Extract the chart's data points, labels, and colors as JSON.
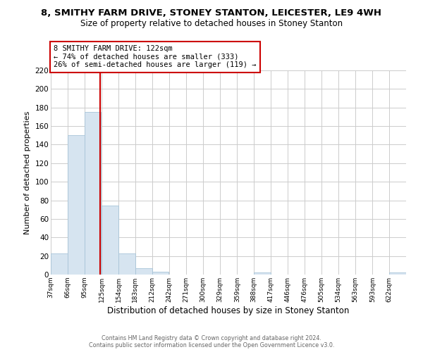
{
  "title": "8, SMITHY FARM DRIVE, STONEY STANTON, LEICESTER, LE9 4WH",
  "subtitle": "Size of property relative to detached houses in Stoney Stanton",
  "xlabel": "Distribution of detached houses by size in Stoney Stanton",
  "ylabel": "Number of detached properties",
  "bar_color": "#d6e4f0",
  "bar_edge_color": "#a8c4d8",
  "vline_x": 122,
  "vline_color": "#cc0000",
  "annotation_title": "8 SMITHY FARM DRIVE: 122sqm",
  "annotation_line1": "← 74% of detached houses are smaller (333)",
  "annotation_line2": "26% of semi-detached houses are larger (119) →",
  "annotation_box_color": "white",
  "annotation_box_edge": "#cc0000",
  "bins_left_edges": [
    37,
    66,
    95,
    125,
    154,
    183,
    212,
    242,
    271,
    300,
    329,
    359,
    388,
    417,
    446,
    476,
    505,
    534,
    563,
    593,
    622
  ],
  "bin_counts": [
    23,
    150,
    175,
    74,
    23,
    7,
    3,
    0,
    0,
    0,
    0,
    0,
    2,
    0,
    0,
    0,
    0,
    0,
    0,
    0,
    2
  ],
  "bin_width": 29,
  "xlim_left": 37,
  "xlim_right": 651,
  "ylim_top": 220,
  "ylim_bottom": 0,
  "yticks": [
    0,
    20,
    40,
    60,
    80,
    100,
    120,
    140,
    160,
    180,
    200,
    220
  ],
  "xtick_labels": [
    "37sqm",
    "66sqm",
    "95sqm",
    "125sqm",
    "154sqm",
    "183sqm",
    "212sqm",
    "242sqm",
    "271sqm",
    "300sqm",
    "329sqm",
    "359sqm",
    "388sqm",
    "417sqm",
    "446sqm",
    "476sqm",
    "505sqm",
    "534sqm",
    "563sqm",
    "593sqm",
    "622sqm"
  ],
  "xtick_positions": [
    37,
    66,
    95,
    125,
    154,
    183,
    212,
    242,
    271,
    300,
    329,
    359,
    388,
    417,
    446,
    476,
    505,
    534,
    563,
    593,
    622
  ],
  "footer_line1": "Contains HM Land Registry data © Crown copyright and database right 2024.",
  "footer_line2": "Contains public sector information licensed under the Open Government Licence v3.0.",
  "background_color": "#ffffff",
  "grid_color": "#cccccc"
}
